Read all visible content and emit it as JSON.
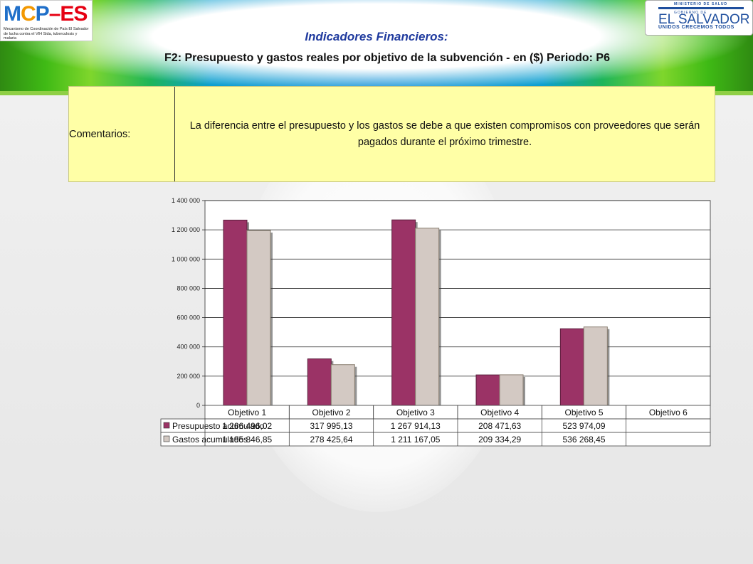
{
  "header": {
    "logo_left": {
      "mark_mcp": [
        "M",
        "C",
        "P"
      ],
      "mark_dash": "–",
      "mark_es": "ES",
      "subtitle": "Mecanismo de Coordinación de País El Salvador de lucha contra el VIH Sida, tuberculosis y malaria"
    },
    "logo_right": {
      "line1": "MINISTERIO DE SALUD",
      "line2": "GOBIERNO DE",
      "main": "EL SALVADOR",
      "slogan": "UNIDOS CRECEMOS TODOS"
    },
    "title": "Indicadores Financieros:",
    "subtitle": "F2: Presupuesto y gastos reales por objetivo de la subvención - en ($)  Periodo: P6"
  },
  "comments": {
    "label": "Comentarios:",
    "text": "La diferencia entre el presupuesto y los gastos se debe a que existen compromisos con proveedores que serán pagados durante el próximo trimestre."
  },
  "colors": {
    "presupuesto": "#9b3366",
    "gastos": "#d3c9c3",
    "header_blue": "#1f3a9e",
    "comment_bg": "#ffffa6"
  },
  "chart_data": {
    "type": "bar",
    "title": "",
    "xlabel": "",
    "ylabel": "",
    "ylim": [
      0,
      1400000
    ],
    "yticks": [
      0,
      200000,
      400000,
      600000,
      800000,
      1000000,
      1200000,
      1400000
    ],
    "ytick_labels": [
      "0",
      "200 000",
      "400 000",
      "600 000",
      "800 000",
      "1 000 000",
      "1 200 000",
      "1 400 000"
    ],
    "categories": [
      "Objetivo 1",
      "Objetivo 2",
      "Objetivo 3",
      "Objetivo 4",
      "Objetivo 5",
      "Objetivo 6"
    ],
    "grid": true,
    "legend": "data-table",
    "series": [
      {
        "name": "Presupuesto acumulado",
        "values": [
          1266496.02,
          317995.13,
          1267914.13,
          208471.63,
          523974.09,
          null
        ],
        "labels": [
          "1 266 496,02",
          "317 995,13",
          "1 267 914,13",
          "208 471,63",
          "523 974,09",
          ""
        ]
      },
      {
        "name": "Gastos acumulados",
        "values": [
          1195846.85,
          278425.64,
          1211167.05,
          209334.29,
          536268.45,
          null
        ],
        "labels": [
          "1 195 846,85",
          "278 425,64",
          "1 211 167,05",
          "209 334,29",
          "536 268,45",
          ""
        ]
      }
    ]
  }
}
